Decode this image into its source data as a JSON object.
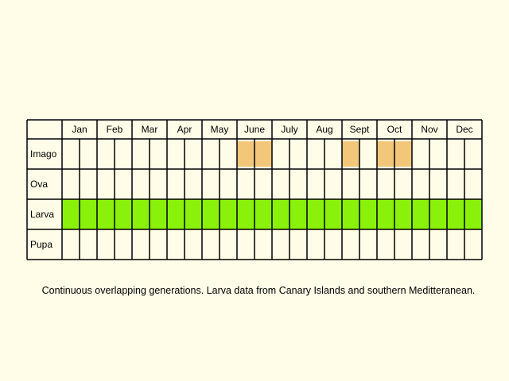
{
  "months": [
    "Jan",
    "Feb",
    "Mar",
    "Apr",
    "May",
    "June",
    "July",
    "Aug",
    "Sept",
    "Oct",
    "Nov",
    "Dec"
  ],
  "rows": [
    {
      "label": "Imago",
      "kind": "imago"
    },
    {
      "label": "Ova",
      "kind": "ova"
    },
    {
      "label": "Larva",
      "kind": "larva"
    },
    {
      "label": "Pupa",
      "kind": "pupa"
    }
  ],
  "colors": {
    "background": "#fffde8",
    "imago": "#f2c77a",
    "larva": "#8af20a",
    "grid": "#000000"
  },
  "occurrence": {
    "Imago": [
      {
        "month": "June",
        "half": 1
      },
      {
        "month": "June",
        "half": 2
      },
      {
        "month": "Sept",
        "half": 1
      },
      {
        "month": "Oct",
        "half": 1
      },
      {
        "month": "Oct",
        "half": 2
      }
    ],
    "Ova": [],
    "Larva": "all",
    "Pupa": []
  },
  "caption": "Continuous overlapping generations. Larva data from Canary Islands and southern Meditteranean."
}
